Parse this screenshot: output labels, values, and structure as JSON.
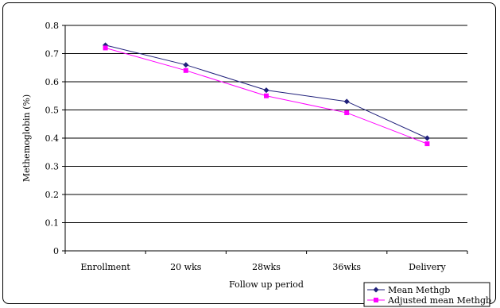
{
  "chart_data": {
    "type": "line",
    "categories": [
      "Enrollment",
      "20 wks",
      "28wks",
      "36wks",
      "Delivery"
    ],
    "series": [
      {
        "name": "Mean Methgb",
        "values": [
          0.73,
          0.66,
          0.57,
          0.53,
          0.4
        ],
        "color": "#1f1f7a",
        "marker": "diamond"
      },
      {
        "name": "Adjusted mean Methgb",
        "values": [
          0.72,
          0.64,
          0.55,
          0.49,
          0.38
        ],
        "color": "#ff00ff",
        "marker": "square"
      }
    ],
    "xlabel": "Follow up period",
    "ylabel": "Methemoglobin (%)",
    "ylim": [
      0,
      0.8
    ],
    "yticks": [
      "0",
      "0.1",
      "0.2",
      "0.3",
      "0.4",
      "0.5",
      "0.6",
      "0.7",
      "0.8"
    ],
    "grid": true,
    "legend_position": "bottom-right"
  }
}
